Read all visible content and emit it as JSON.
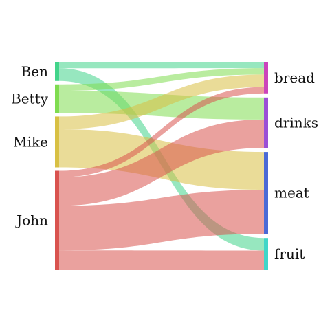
{
  "chart_data": {
    "type": "sankey",
    "title": "",
    "sources": [
      {
        "name": "Ben",
        "color": "#42d48a"
      },
      {
        "name": "Betty",
        "color": "#7fdc50"
      },
      {
        "name": "Mike",
        "color": "#d8c044"
      },
      {
        "name": "John",
        "color": "#d9534f"
      }
    ],
    "targets": [
      {
        "name": "bread",
        "color": "#cc44bb"
      },
      {
        "name": "drinks",
        "color": "#9b4fd6"
      },
      {
        "name": "meat",
        "color": "#4a6ad6"
      },
      {
        "name": "fruit",
        "color": "#3fd6c8"
      }
    ],
    "flows": [
      {
        "source": "Ben",
        "target": "bread",
        "value": 2
      },
      {
        "source": "Ben",
        "target": "fruit",
        "value": 4
      },
      {
        "source": "Betty",
        "target": "bread",
        "value": 2
      },
      {
        "source": "Betty",
        "target": "drinks",
        "value": 7
      },
      {
        "source": "Mike",
        "target": "bread",
        "value": 4
      },
      {
        "source": "Mike",
        "target": "meat",
        "value": 12
      },
      {
        "source": "John",
        "target": "bread",
        "value": 2
      },
      {
        "source": "John",
        "target": "drinks",
        "value": 9
      },
      {
        "source": "John",
        "target": "meat",
        "value": 14
      },
      {
        "source": "John",
        "target": "fruit",
        "value": 6
      }
    ]
  }
}
